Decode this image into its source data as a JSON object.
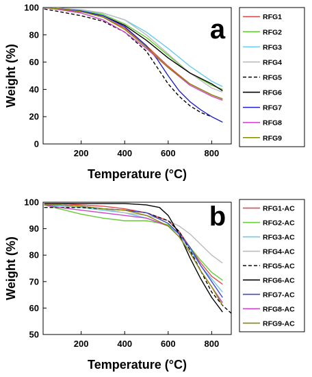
{
  "chart_data": [
    {
      "type": "line",
      "panel_label": "a",
      "xlabel": "Temperature (°C)",
      "ylabel": "Weight (%)",
      "xlim": [
        25,
        890
      ],
      "ylim": [
        0,
        100
      ],
      "x_ticks": [
        200,
        400,
        600,
        800
      ],
      "y_ticks": [
        0,
        20,
        40,
        60,
        80,
        100
      ],
      "legend_position": "right",
      "series": [
        {
          "name": "RFG1",
          "color": "#e8474a",
          "dash": false,
          "points": [
            [
              30,
              100
            ],
            [
              100,
              99
            ],
            [
              200,
              97
            ],
            [
              300,
              93
            ],
            [
              400,
              85
            ],
            [
              500,
              72
            ],
            [
              600,
              57
            ],
            [
              700,
              44
            ],
            [
              800,
              36
            ],
            [
              850,
              33
            ]
          ]
        },
        {
          "name": "RFG2",
          "color": "#66cc33",
          "dash": false,
          "points": [
            [
              30,
              100
            ],
            [
              100,
              99
            ],
            [
              200,
              98
            ],
            [
              300,
              95
            ],
            [
              400,
              88
            ],
            [
              500,
              78
            ],
            [
              600,
              65
            ],
            [
              700,
              52
            ],
            [
              800,
              43
            ],
            [
              850,
              40
            ]
          ]
        },
        {
          "name": "RFG3",
          "color": "#66ccee",
          "dash": false,
          "points": [
            [
              30,
              100
            ],
            [
              100,
              99.5
            ],
            [
              200,
              98
            ],
            [
              300,
              96
            ],
            [
              400,
              91
            ],
            [
              500,
              82
            ],
            [
              600,
              70
            ],
            [
              700,
              57
            ],
            [
              800,
              46
            ],
            [
              850,
              42
            ]
          ]
        },
        {
          "name": "RFG4",
          "color": "#bbbbbb",
          "dash": false,
          "points": [
            [
              30,
              100
            ],
            [
              100,
              99.5
            ],
            [
              200,
              98.5
            ],
            [
              300,
              96
            ],
            [
              400,
              91
            ],
            [
              500,
              80
            ],
            [
              600,
              66
            ],
            [
              700,
              52
            ],
            [
              800,
              41
            ],
            [
              850,
              38
            ]
          ]
        },
        {
          "name": "RFG5",
          "color": "#000000",
          "dash": true,
          "points": [
            [
              30,
              99
            ],
            [
              100,
              97
            ],
            [
              200,
              94
            ],
            [
              300,
              90
            ],
            [
              400,
              82
            ],
            [
              500,
              68
            ],
            [
              550,
              56
            ],
            [
              600,
              44
            ],
            [
              650,
              35
            ],
            [
              700,
              28
            ],
            [
              750,
              23
            ],
            [
              800,
              20
            ]
          ]
        },
        {
          "name": "RFG6",
          "color": "#000000",
          "dash": false,
          "points": [
            [
              30,
              100
            ],
            [
              100,
              99
            ],
            [
              200,
              97
            ],
            [
              300,
              94
            ],
            [
              400,
              87
            ],
            [
              500,
              76
            ],
            [
              600,
              63
            ],
            [
              700,
              52
            ],
            [
              800,
              44
            ],
            [
              850,
              39
            ]
          ]
        },
        {
          "name": "RFG7",
          "color": "#2020cc",
          "dash": false,
          "points": [
            [
              30,
              100
            ],
            [
              100,
              99
            ],
            [
              200,
              97.5
            ],
            [
              300,
              94
            ],
            [
              400,
              86
            ],
            [
              500,
              72
            ],
            [
              550,
              62
            ],
            [
              600,
              50
            ],
            [
              650,
              39
            ],
            [
              700,
              31
            ],
            [
              750,
              25
            ],
            [
              800,
              20
            ],
            [
              850,
              16
            ]
          ]
        },
        {
          "name": "RFG8",
          "color": "#cc44cc",
          "dash": false,
          "points": [
            [
              30,
              100
            ],
            [
              100,
              98.5
            ],
            [
              200,
              96
            ],
            [
              300,
              91
            ],
            [
              400,
              82
            ],
            [
              500,
              70
            ],
            [
              600,
              56
            ],
            [
              700,
              43
            ],
            [
              800,
              35
            ],
            [
              850,
              32
            ]
          ]
        },
        {
          "name": "RFG9",
          "color": "#888800",
          "dash": false,
          "points": [
            [
              30,
              100
            ],
            [
              100,
              99
            ],
            [
              200,
              97
            ],
            [
              300,
              93
            ],
            [
              400,
              84
            ],
            [
              500,
              71
            ],
            [
              600,
              56
            ],
            [
              700,
              44
            ],
            [
              800,
              36
            ],
            [
              850,
              33
            ]
          ]
        }
      ]
    },
    {
      "type": "line",
      "panel_label": "b",
      "xlabel": "Temperature (°C)",
      "ylabel": "Weight (%)",
      "xlim": [
        25,
        890
      ],
      "ylim": [
        50,
        100
      ],
      "x_ticks": [
        200,
        400,
        600,
        800
      ],
      "y_ticks": [
        50,
        60,
        70,
        80,
        90,
        100
      ],
      "legend_position": "right",
      "series": [
        {
          "name": "RFG1-AC",
          "color": "#e8474a",
          "dash": false,
          "points": [
            [
              30,
              99.5
            ],
            [
              100,
              99.5
            ],
            [
              200,
              99
            ],
            [
              300,
              98.5
            ],
            [
              400,
              97.5
            ],
            [
              500,
              96
            ],
            [
              600,
              93
            ],
            [
              650,
              89
            ],
            [
              700,
              83
            ],
            [
              750,
              77
            ],
            [
              800,
              72
            ],
            [
              850,
              69
            ]
          ]
        },
        {
          "name": "RFG2-AC",
          "color": "#66cc33",
          "dash": false,
          "points": [
            [
              30,
              99
            ],
            [
              100,
              97.5
            ],
            [
              200,
              95.5
            ],
            [
              300,
              94
            ],
            [
              400,
              93
            ],
            [
              500,
              93
            ],
            [
              600,
              91.5
            ],
            [
              650,
              88
            ],
            [
              700,
              83
            ],
            [
              750,
              78
            ],
            [
              800,
              73.5
            ],
            [
              850,
              70.5
            ]
          ]
        },
        {
          "name": "RFG3-AC",
          "color": "#66ccee",
          "dash": false,
          "points": [
            [
              30,
              99
            ],
            [
              100,
              98.5
            ],
            [
              200,
              98
            ],
            [
              300,
              97
            ],
            [
              400,
              96
            ],
            [
              500,
              94
            ],
            [
              600,
              91
            ],
            [
              650,
              88
            ],
            [
              700,
              82
            ],
            [
              750,
              76
            ],
            [
              800,
              71
            ],
            [
              850,
              66
            ]
          ]
        },
        {
          "name": "RFG4-AC",
          "color": "#bbbbbb",
          "dash": false,
          "points": [
            [
              30,
              99
            ],
            [
              100,
              99
            ],
            [
              200,
              98.5
            ],
            [
              300,
              97.5
            ],
            [
              400,
              96
            ],
            [
              500,
              95
            ],
            [
              600,
              93
            ],
            [
              650,
              91
            ],
            [
              700,
              88
            ],
            [
              750,
              84
            ],
            [
              800,
              80
            ],
            [
              850,
              77
            ]
          ]
        },
        {
          "name": "RFG5-AC",
          "color": "#000000",
          "dash": true,
          "points": [
            [
              30,
              98
            ],
            [
              100,
              98
            ],
            [
              200,
              98
            ],
            [
              300,
              97.5
            ],
            [
              400,
              97
            ],
            [
              500,
              96
            ],
            [
              600,
              93
            ],
            [
              650,
              89
            ],
            [
              700,
              82
            ],
            [
              750,
              74
            ],
            [
              800,
              66
            ],
            [
              850,
              61
            ],
            [
              890,
              58
            ]
          ]
        },
        {
          "name": "RFG6-AC",
          "color": "#000000",
          "dash": false,
          "points": [
            [
              30,
              99.5
            ],
            [
              100,
              99.5
            ],
            [
              200,
              99.5
            ],
            [
              300,
              99.5
            ],
            [
              400,
              99.5
            ],
            [
              500,
              99
            ],
            [
              560,
              98
            ],
            [
              600,
              95
            ],
            [
              650,
              88
            ],
            [
              700,
              79
            ],
            [
              750,
              71
            ],
            [
              800,
              64
            ],
            [
              850,
              58.5
            ]
          ]
        },
        {
          "name": "RFG7-AC",
          "color": "#4444cc",
          "dash": false,
          "points": [
            [
              30,
              99
            ],
            [
              100,
              99
            ],
            [
              200,
              98.5
            ],
            [
              300,
              97.5
            ],
            [
              400,
              97
            ],
            [
              500,
              96
            ],
            [
              600,
              92
            ],
            [
              650,
              88
            ],
            [
              700,
              83
            ],
            [
              750,
              76
            ],
            [
              800,
              70
            ],
            [
              850,
              64
            ]
          ]
        },
        {
          "name": "RFG8-AC",
          "color": "#cc44cc",
          "dash": false,
          "points": [
            [
              30,
              99
            ],
            [
              100,
              98
            ],
            [
              200,
              97
            ],
            [
              300,
              96
            ],
            [
              400,
              95
            ],
            [
              500,
              94
            ],
            [
              600,
              91
            ],
            [
              650,
              87
            ],
            [
              700,
              81
            ],
            [
              750,
              74
            ],
            [
              800,
              68
            ],
            [
              850,
              62
            ]
          ]
        },
        {
          "name": "RFG9-AC",
          "color": "#888800",
          "dash": false,
          "points": [
            [
              30,
              99
            ],
            [
              100,
              99
            ],
            [
              200,
              98.5
            ],
            [
              300,
              97.5
            ],
            [
              400,
              97
            ],
            [
              500,
              95
            ],
            [
              600,
              91
            ],
            [
              650,
              87
            ],
            [
              700,
              81
            ],
            [
              750,
              74
            ],
            [
              800,
              68
            ],
            [
              850,
              61
            ]
          ]
        }
      ]
    }
  ]
}
